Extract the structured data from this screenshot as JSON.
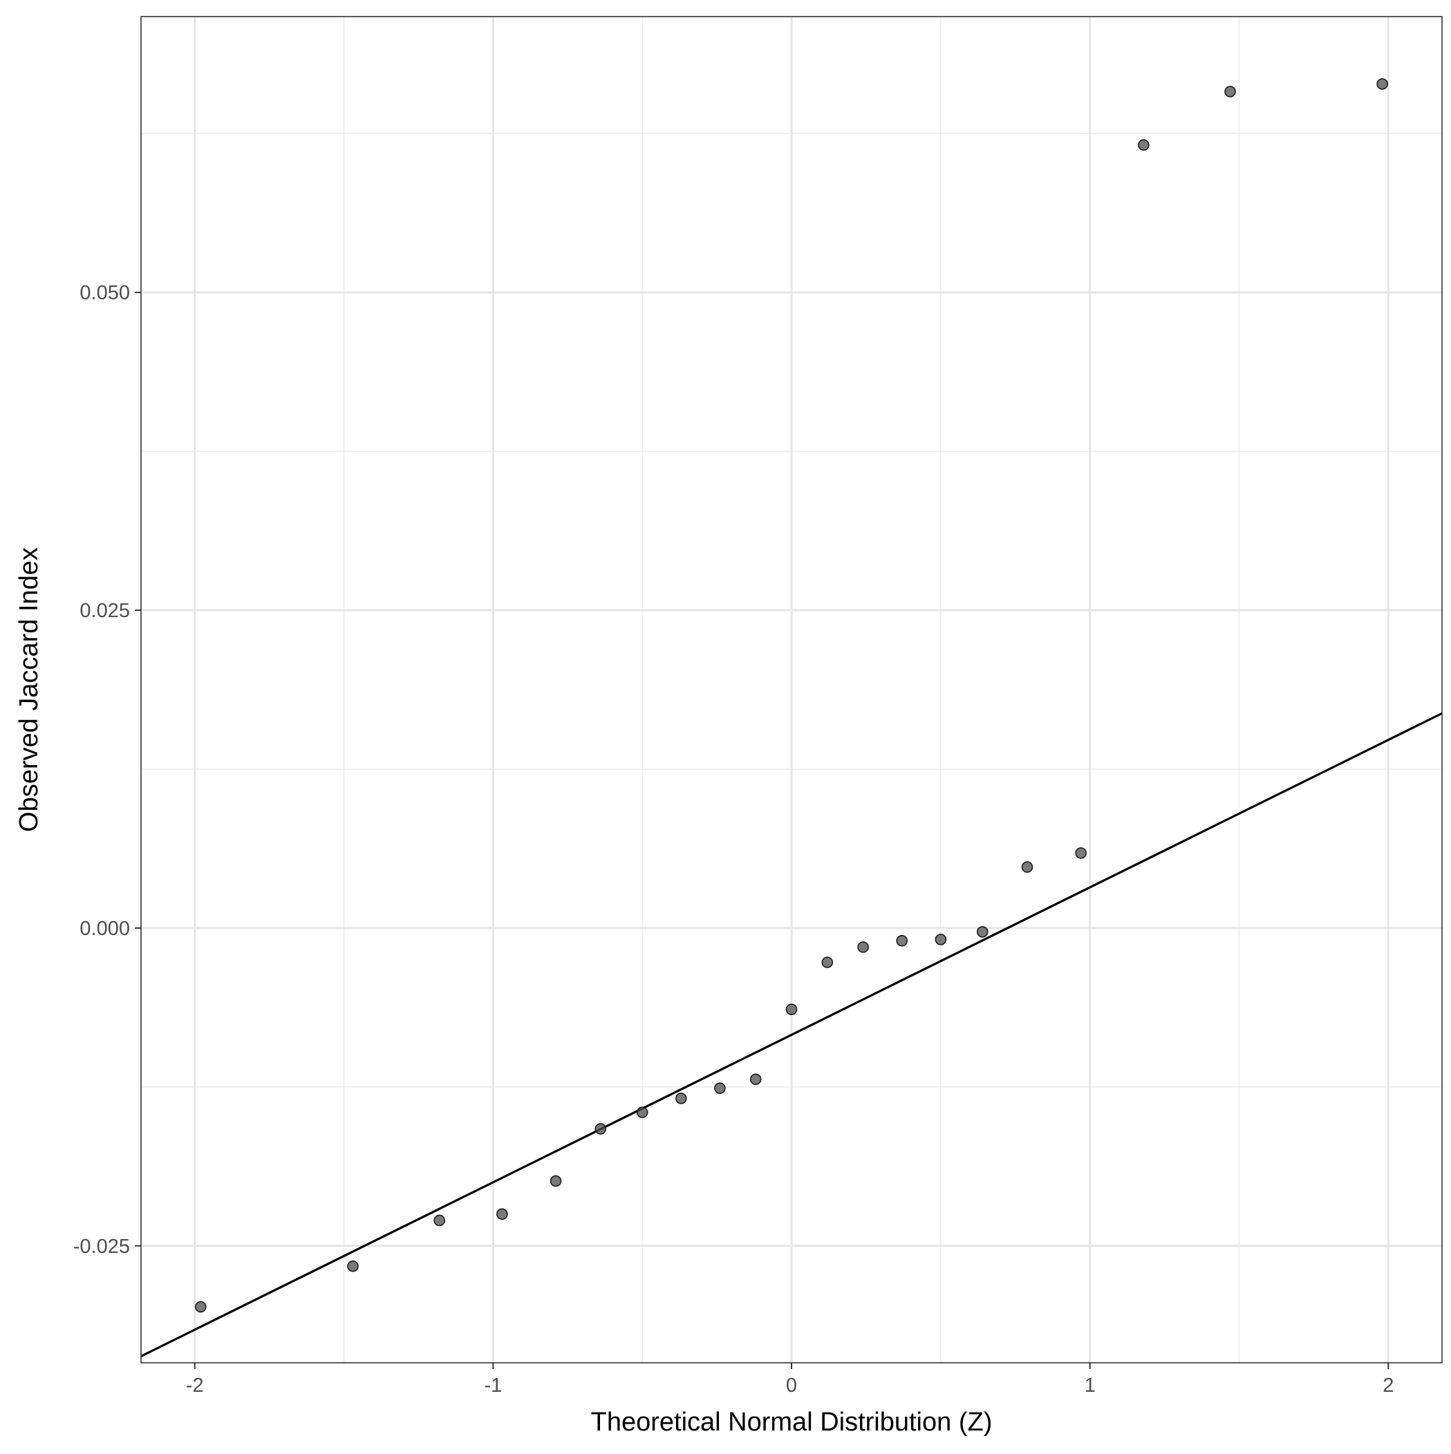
{
  "chart_data": {
    "type": "scatter",
    "title": "",
    "xlabel": "Theoretical Normal Distribution (Z)",
    "ylabel": "Observed Jaccard Index",
    "xlim": [
      -2.18,
      2.18
    ],
    "ylim": [
      -0.0342,
      0.0717
    ],
    "x_ticks": [
      -2,
      -1,
      0,
      1,
      2
    ],
    "x_tick_labels": [
      "-2",
      "-1",
      "0",
      "1",
      "2"
    ],
    "x_minor_ticks": [
      -1.5,
      -0.5,
      0.5,
      1.5
    ],
    "y_ticks": [
      -0.025,
      0.0,
      0.025,
      0.05
    ],
    "y_tick_labels": [
      "-0.025",
      "0.000",
      "0.025",
      "0.050"
    ],
    "y_minor_ticks": [
      -0.0125,
      0.0125,
      0.0375,
      0.0625
    ],
    "grid": true,
    "points": {
      "x": [
        -1.98,
        -1.47,
        -1.18,
        -0.97,
        -0.79,
        -0.64,
        -0.5,
        -0.37,
        -0.24,
        -0.12,
        0.0,
        0.12,
        0.24,
        0.37,
        0.5,
        0.64,
        0.79,
        0.97,
        1.18,
        1.47,
        1.98
      ],
      "y": [
        -0.0298,
        -0.0266,
        -0.023,
        -0.0225,
        -0.0199,
        -0.0158,
        -0.0145,
        -0.0134,
        -0.0126,
        -0.0119,
        -0.0064,
        -0.0027,
        -0.0015,
        -0.001,
        -0.0009,
        -0.0003,
        0.0048,
        0.0059,
        0.0616,
        0.0658,
        0.0664
      ],
      "color": "#4d4d4d",
      "opacity": 0.75
    },
    "reference_line": {
      "intercept": -0.0084,
      "slope": 0.0116,
      "color": "#000000"
    }
  }
}
